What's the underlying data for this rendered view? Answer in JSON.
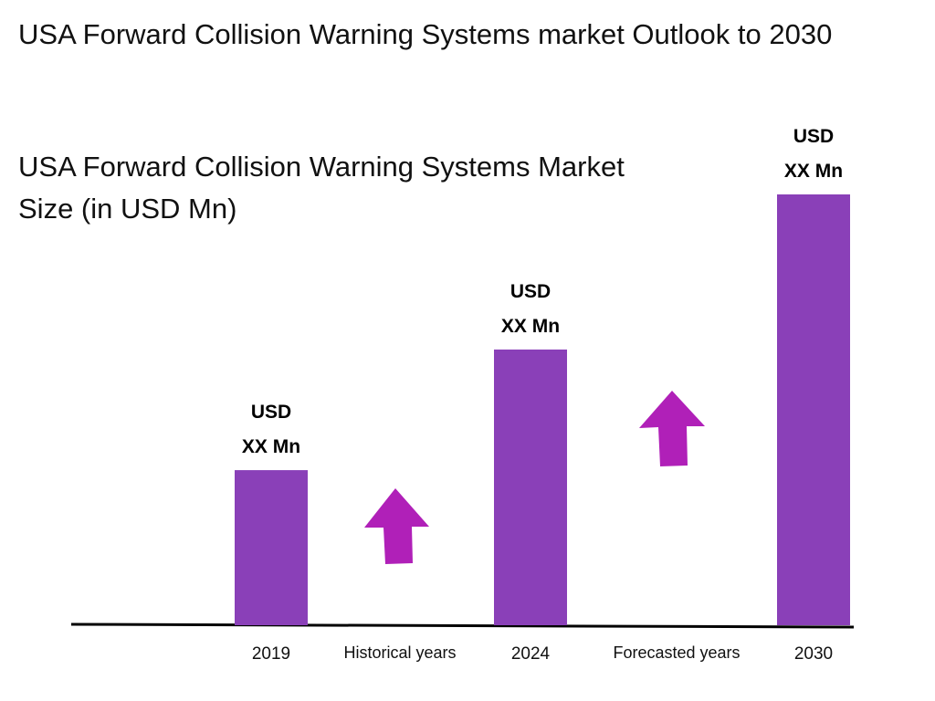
{
  "chart_data": {
    "type": "bar",
    "title": "USA Forward Collision Warning Systems market Outlook to 2030",
    "subtitle": "USA Forward Collision Warning Systems Market Size (in USD Mn)",
    "categories": [
      "2019",
      "2024",
      "2030"
    ],
    "values_relative": [
      0.36,
      0.64,
      1.0
    ],
    "data_labels": [
      {
        "line1": "USD",
        "line2": "XX Mn"
      },
      {
        "line1": "USD",
        "line2": "XX Mn"
      },
      {
        "line1": "USD",
        "line2": "XX Mn"
      }
    ],
    "period_labels": [
      "Historical years",
      "Forecasted years"
    ],
    "grid": false,
    "colors": {
      "bar": "#8a40b8",
      "arrow": "#b020b8",
      "axis": "#000000"
    },
    "annotations": [
      "up-arrow-icon",
      "up-arrow-icon"
    ]
  }
}
